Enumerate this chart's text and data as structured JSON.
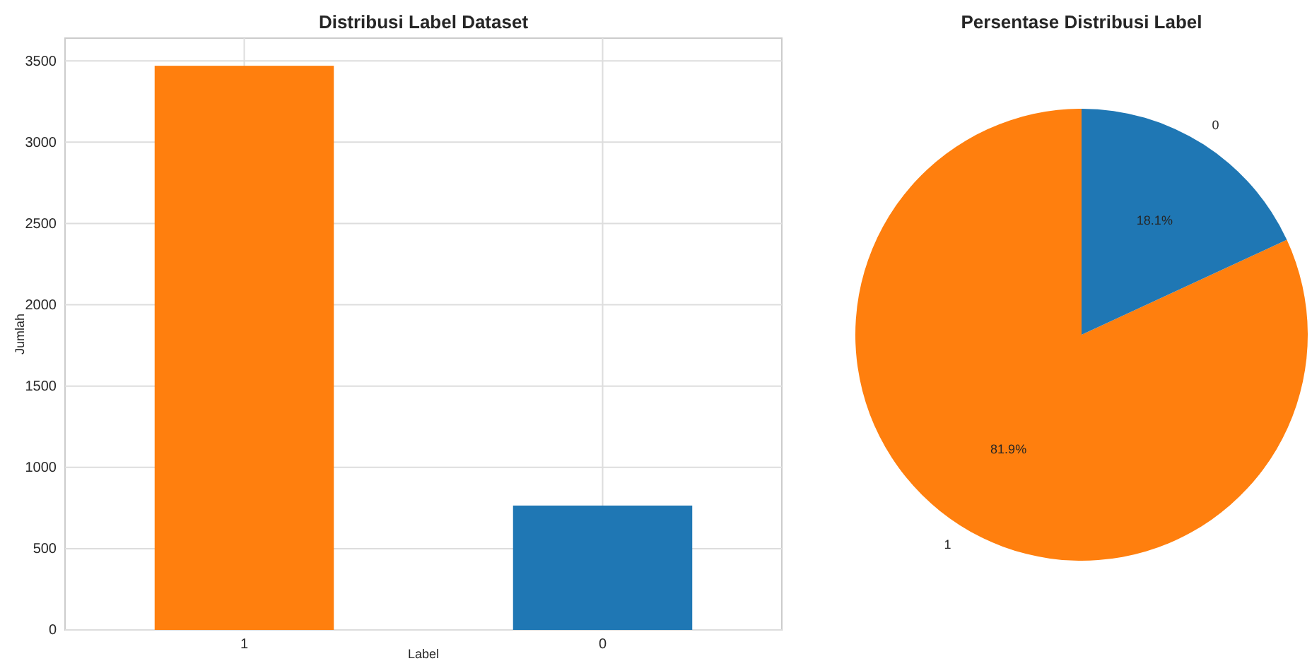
{
  "chart_data": [
    {
      "type": "bar",
      "title": "Distribusi Label Dataset",
      "xlabel": "Label",
      "ylabel": "Jumlah",
      "categories": [
        "1",
        "0"
      ],
      "values": [
        3470,
        765
      ],
      "colors": [
        "#ff7f0e",
        "#1f77b4"
      ],
      "ylim": [
        0,
        3640
      ],
      "yticks": [
        0,
        500,
        1000,
        1500,
        2000,
        2500,
        3000,
        3500
      ],
      "grid": true
    },
    {
      "type": "pie",
      "title": "Persentase Distribusi Label",
      "categories": [
        "1",
        "0"
      ],
      "values": [
        81.9,
        18.1
      ],
      "colors": [
        "#ff7f0e",
        "#1f77b4"
      ],
      "value_labels": [
        "81.9%",
        "18.1%"
      ]
    }
  ]
}
